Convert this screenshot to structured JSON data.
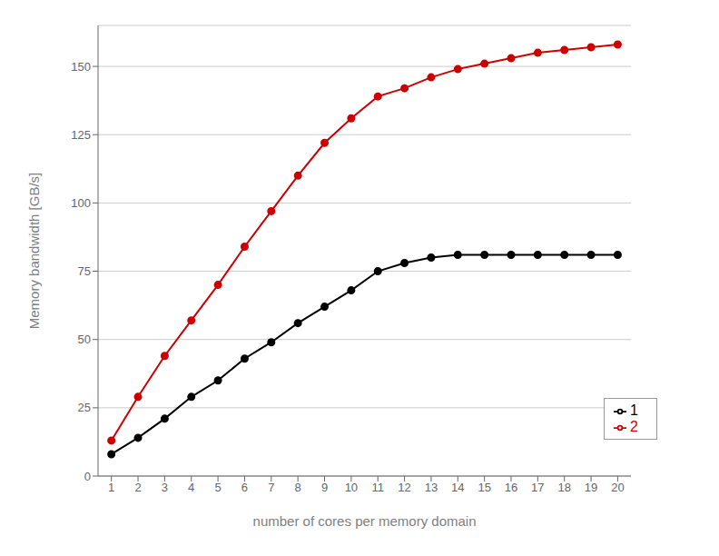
{
  "chart_data": {
    "type": "line",
    "x": [
      1,
      2,
      3,
      4,
      5,
      6,
      7,
      8,
      9,
      10,
      11,
      12,
      13,
      14,
      15,
      16,
      17,
      18,
      19,
      20
    ],
    "series": [
      {
        "name": "1",
        "color": "#000000",
        "values": [
          8,
          14,
          21,
          29,
          35,
          43,
          49,
          56,
          62,
          68,
          75,
          78,
          80,
          81,
          81,
          81,
          81,
          81,
          81,
          81
        ]
      },
      {
        "name": "2",
        "color": "#cc0000",
        "values": [
          13,
          29,
          44,
          57,
          70,
          84,
          97,
          110,
          122,
          131,
          139,
          142,
          146,
          149,
          151,
          153,
          155,
          156,
          157,
          158
        ]
      }
    ],
    "xlabel": "number of cores per memory domain",
    "ylabel": "Memory bandwidth [GB/s]",
    "xlim": [
      0.5,
      20.5
    ],
    "xticks": [
      1,
      2,
      3,
      4,
      5,
      6,
      7,
      8,
      9,
      10,
      11,
      12,
      13,
      14,
      15,
      16,
      17,
      18,
      19,
      20
    ],
    "ylim": [
      0,
      165
    ],
    "yticks": [
      0,
      25,
      50,
      75,
      100,
      125,
      150
    ],
    "grid": true,
    "legend": "lower right",
    "marker": "circle"
  }
}
